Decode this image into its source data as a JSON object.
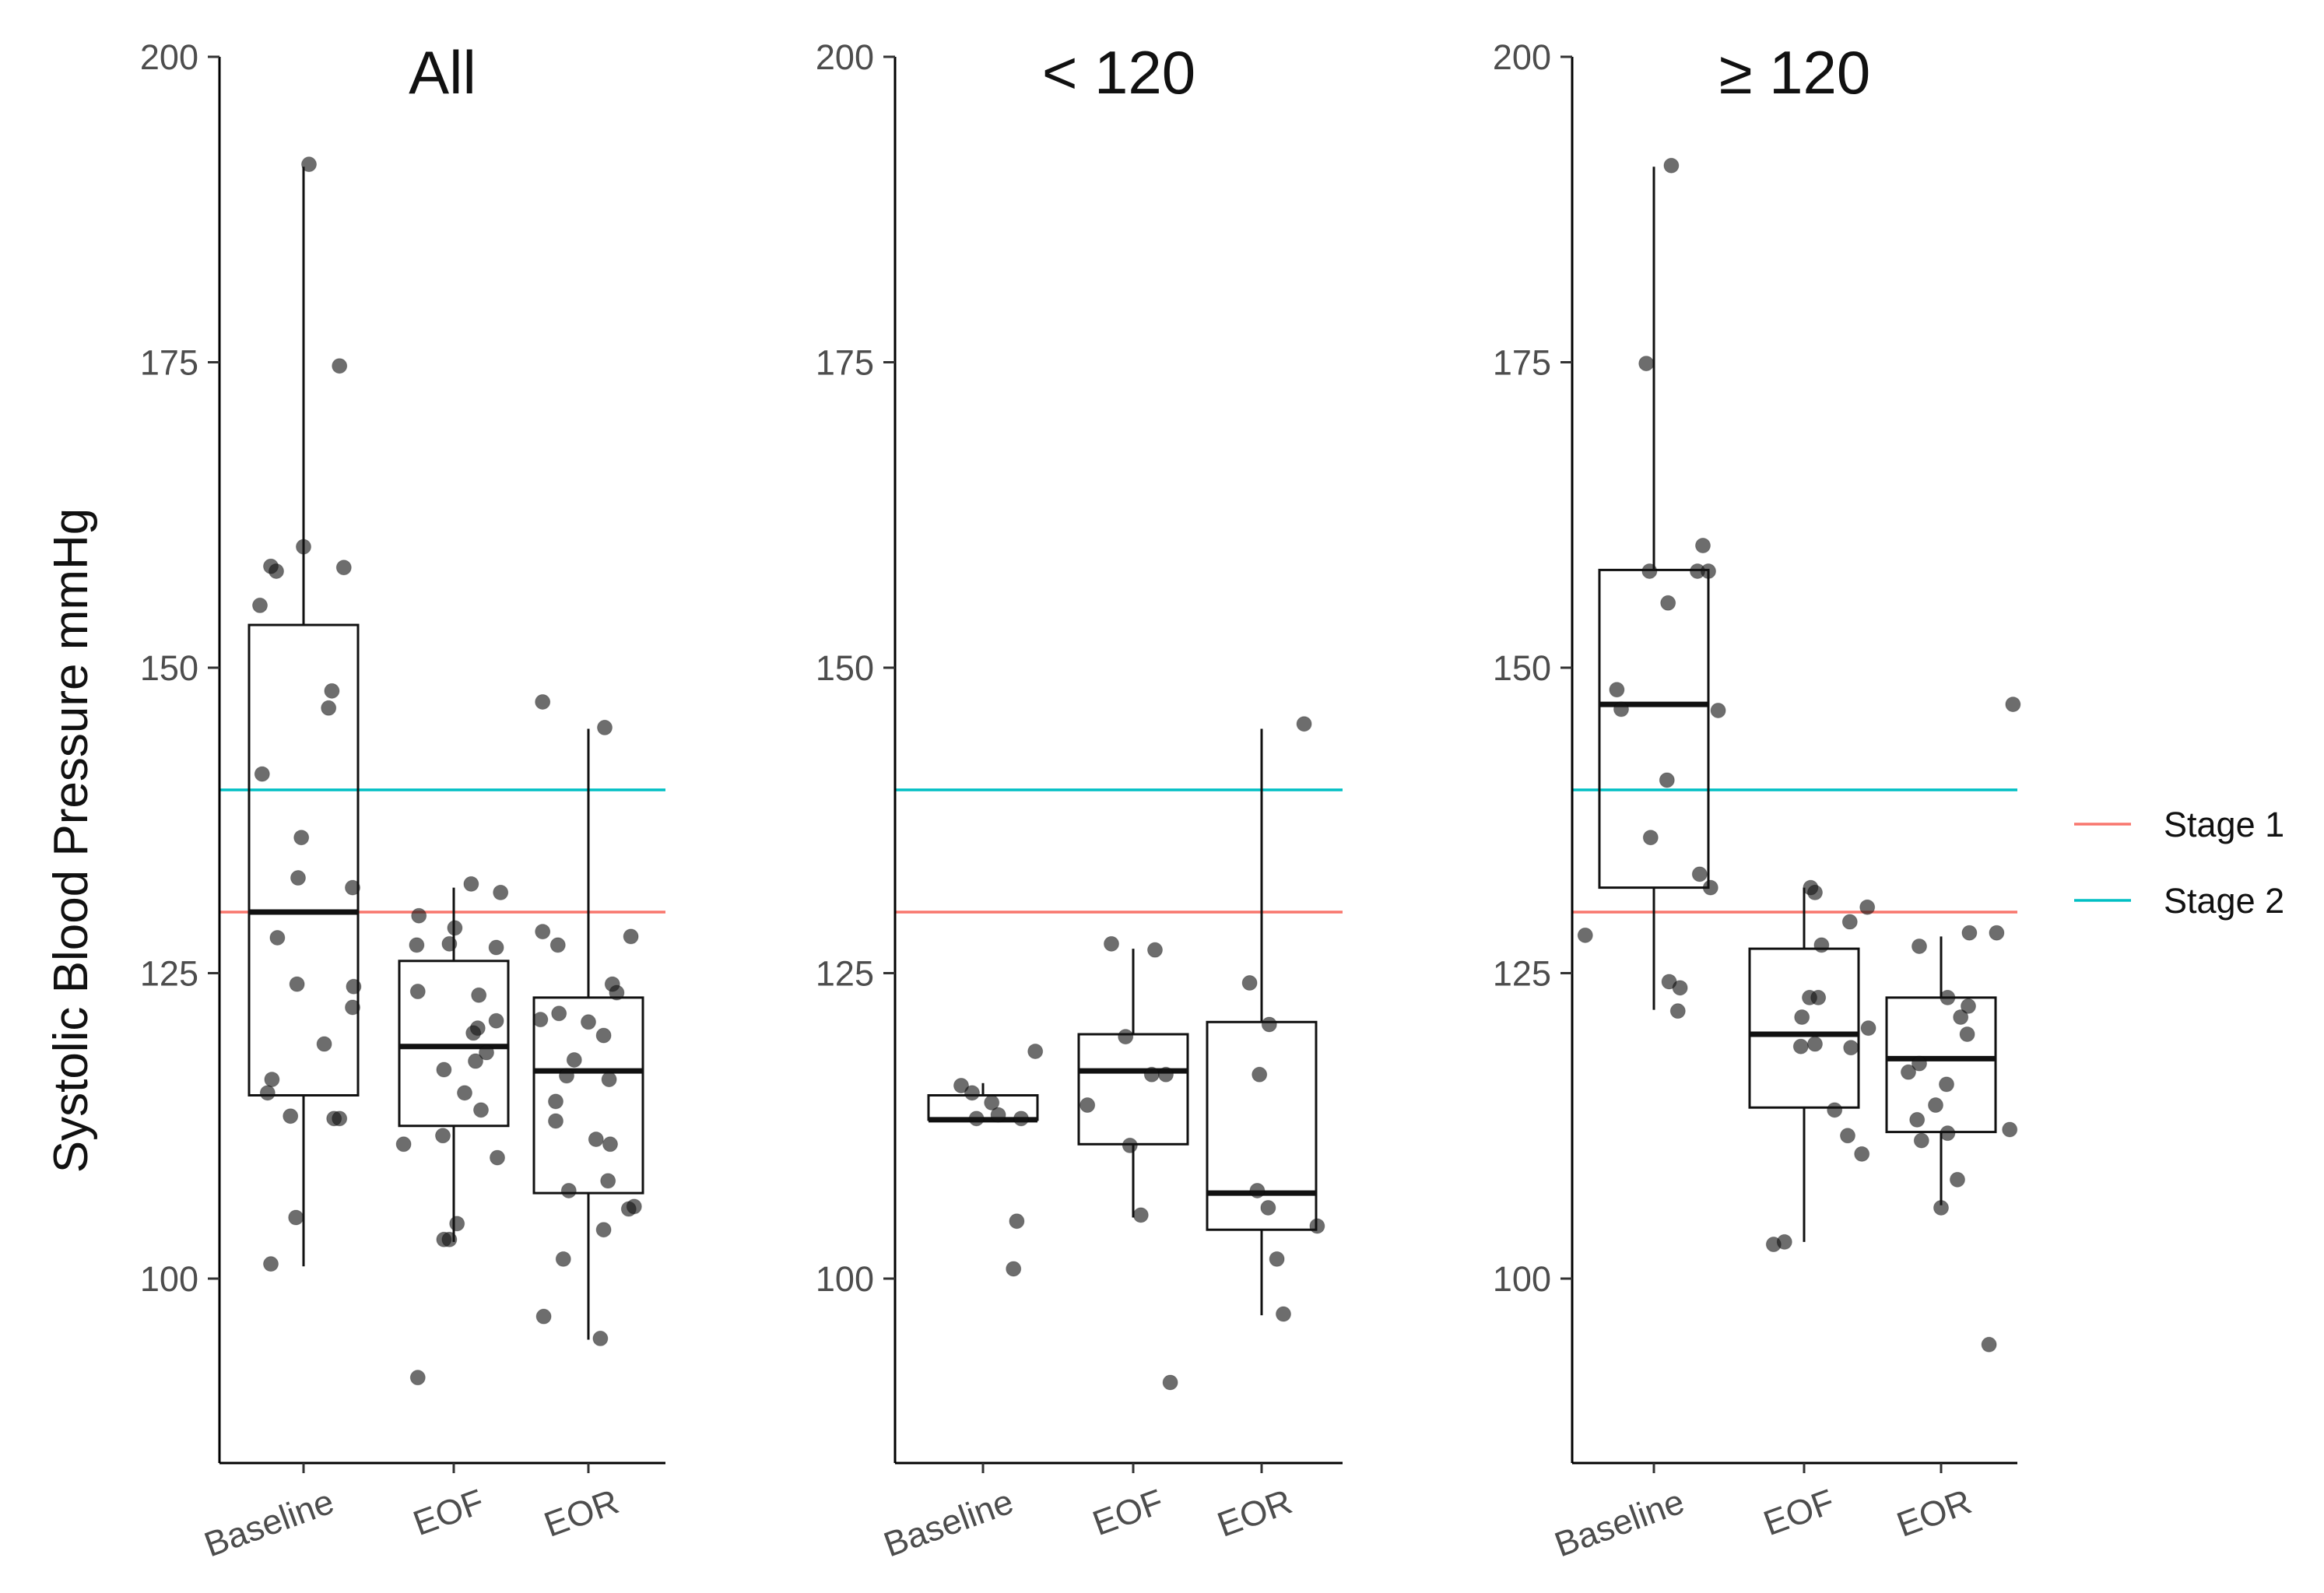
{
  "figure": {
    "ylabel": "Systolic Blood Pressure mmHg",
    "legend": {
      "position": "right",
      "items": [
        {
          "label": "Stage 1",
          "color": "#f8766d",
          "y": 130
        },
        {
          "label": "Stage 2",
          "color": "#00bfc4",
          "y": 140
        }
      ]
    }
  },
  "chart_data": [
    {
      "type": "box",
      "title": "All",
      "categories": [
        "Baseline",
        "EOF",
        "EOR"
      ],
      "ylim": [
        85,
        200
      ],
      "yticks": [
        100,
        125,
        150,
        175,
        200
      ],
      "boxes": [
        {
          "q1": 115,
          "median": 130,
          "q3": 153.5,
          "whisker_low": 101,
          "whisker_high": 191
        },
        {
          "q1": 112.5,
          "median": 119,
          "q3": 126,
          "whisker_low": 103,
          "whisker_high": 132
        },
        {
          "q1": 107,
          "median": 117,
          "q3": 123,
          "whisker_low": 95,
          "whisker_high": 145
        }
      ],
      "points": [
        {
          "x": "Baseline",
          "offset": 0.05,
          "y": 191.2
        },
        {
          "x": "Baseline",
          "offset": 0.33,
          "y": 174.7
        },
        {
          "x": "Baseline",
          "offset": 0.0,
          "y": 159.9
        },
        {
          "x": "Baseline",
          "offset": -0.3,
          "y": 158.3
        },
        {
          "x": "Baseline",
          "offset": -0.25,
          "y": 157.9
        },
        {
          "x": "Baseline",
          "offset": 0.37,
          "y": 158.2
        },
        {
          "x": "Baseline",
          "offset": -0.4,
          "y": 155.1
        },
        {
          "x": "Baseline",
          "offset": 0.26,
          "y": 148.1
        },
        {
          "x": "Baseline",
          "offset": 0.23,
          "y": 146.7
        },
        {
          "x": "Baseline",
          "offset": -0.38,
          "y": 141.3
        },
        {
          "x": "Baseline",
          "offset": -0.02,
          "y": 136.1
        },
        {
          "x": "Baseline",
          "offset": -0.05,
          "y": 132.8
        },
        {
          "x": "Baseline",
          "offset": 0.45,
          "y": 132.0
        },
        {
          "x": "Baseline",
          "offset": -0.24,
          "y": 127.9
        },
        {
          "x": "Baseline",
          "offset": -0.06,
          "y": 124.1
        },
        {
          "x": "Baseline",
          "offset": 0.46,
          "y": 123.9
        },
        {
          "x": "Baseline",
          "offset": 0.45,
          "y": 122.2
        },
        {
          "x": "Baseline",
          "offset": 0.19,
          "y": 119.2
        },
        {
          "x": "Baseline",
          "offset": -0.29,
          "y": 116.3
        },
        {
          "x": "Baseline",
          "offset": -0.33,
          "y": 115.2
        },
        {
          "x": "Baseline",
          "offset": -0.12,
          "y": 113.3
        },
        {
          "x": "Baseline",
          "offset": 0.28,
          "y": 113.1
        },
        {
          "x": "Baseline",
          "offset": 0.33,
          "y": 113.1
        },
        {
          "x": "Baseline",
          "offset": -0.07,
          "y": 105.0
        },
        {
          "x": "Baseline",
          "offset": -0.3,
          "y": 101.2
        },
        {
          "x": "EOF",
          "offset": -0.32,
          "y": 129.7
        },
        {
          "x": "EOF",
          "offset": 0.16,
          "y": 132.3
        },
        {
          "x": "EOF",
          "offset": 0.43,
          "y": 131.6
        },
        {
          "x": "EOF",
          "offset": 0.01,
          "y": 128.7
        },
        {
          "x": "EOF",
          "offset": -0.34,
          "y": 127.3
        },
        {
          "x": "EOF",
          "offset": -0.04,
          "y": 127.4
        },
        {
          "x": "EOF",
          "offset": 0.39,
          "y": 127.1
        },
        {
          "x": "EOF",
          "offset": -0.33,
          "y": 123.5
        },
        {
          "x": "EOF",
          "offset": 0.23,
          "y": 123.2
        },
        {
          "x": "EOF",
          "offset": 0.39,
          "y": 121.1
        },
        {
          "x": "EOF",
          "offset": 0.22,
          "y": 120.5
        },
        {
          "x": "EOF",
          "offset": 0.18,
          "y": 120.1
        },
        {
          "x": "EOF",
          "offset": 0.3,
          "y": 118.5
        },
        {
          "x": "EOF",
          "offset": -0.09,
          "y": 117.1
        },
        {
          "x": "EOF",
          "offset": 0.2,
          "y": 117.8
        },
        {
          "x": "EOF",
          "offset": 0.1,
          "y": 115.2
        },
        {
          "x": "EOF",
          "offset": 0.25,
          "y": 113.8
        },
        {
          "x": "EOF",
          "offset": -0.1,
          "y": 111.7
        },
        {
          "x": "EOF",
          "offset": -0.46,
          "y": 111.0
        },
        {
          "x": "EOF",
          "offset": 0.4,
          "y": 109.9
        },
        {
          "x": "EOF",
          "offset": 0.03,
          "y": 104.5
        },
        {
          "x": "EOF",
          "offset": -0.09,
          "y": 103.2
        },
        {
          "x": "EOF",
          "offset": -0.04,
          "y": 103.2
        },
        {
          "x": "EOF",
          "offset": -0.33,
          "y": 91.9
        },
        {
          "x": "EOR",
          "offset": -0.42,
          "y": 147.2
        },
        {
          "x": "EOR",
          "offset": 0.15,
          "y": 145.1
        },
        {
          "x": "EOR",
          "offset": -0.42,
          "y": 128.4
        },
        {
          "x": "EOR",
          "offset": -0.28,
          "y": 127.3
        },
        {
          "x": "EOR",
          "offset": 0.39,
          "y": 128.0
        },
        {
          "x": "EOR",
          "offset": 0.22,
          "y": 124.1
        },
        {
          "x": "EOR",
          "offset": 0.26,
          "y": 123.4
        },
        {
          "x": "EOR",
          "offset": -0.44,
          "y": 121.2
        },
        {
          "x": "EOR",
          "offset": -0.27,
          "y": 121.7
        },
        {
          "x": "EOR",
          "offset": 0.0,
          "y": 121.0
        },
        {
          "x": "EOR",
          "offset": 0.14,
          "y": 119.9
        },
        {
          "x": "EOR",
          "offset": -0.13,
          "y": 117.9
        },
        {
          "x": "EOR",
          "offset": -0.2,
          "y": 116.6
        },
        {
          "x": "EOR",
          "offset": 0.19,
          "y": 116.3
        },
        {
          "x": "EOR",
          "offset": -0.3,
          "y": 114.5
        },
        {
          "x": "EOR",
          "offset": -0.3,
          "y": 112.9
        },
        {
          "x": "EOR",
          "offset": 0.07,
          "y": 111.4
        },
        {
          "x": "EOR",
          "offset": 0.2,
          "y": 111.0
        },
        {
          "x": "EOR",
          "offset": 0.18,
          "y": 108.0
        },
        {
          "x": "EOR",
          "offset": -0.18,
          "y": 107.2
        },
        {
          "x": "EOR",
          "offset": 0.37,
          "y": 105.7
        },
        {
          "x": "EOR",
          "offset": 0.42,
          "y": 105.9
        },
        {
          "x": "EOR",
          "offset": 0.14,
          "y": 104.0
        },
        {
          "x": "EOR",
          "offset": -0.23,
          "y": 101.6
        },
        {
          "x": "EOR",
          "offset": -0.41,
          "y": 96.9
        },
        {
          "x": "EOR",
          "offset": 0.11,
          "y": 95.1
        }
      ]
    },
    {
      "type": "box",
      "title": "< 120",
      "categories": [
        "Baseline",
        "EOF",
        "EOR"
      ],
      "ylim": [
        85,
        200
      ],
      "yticks": [
        100,
        125,
        150,
        175,
        200
      ],
      "boxes": [
        {
          "q1": 113,
          "median": 113,
          "q3": 115,
          "whisker_low": 113,
          "whisker_high": 116
        },
        {
          "q1": 111,
          "median": 117,
          "q3": 120,
          "whisker_low": 105,
          "whisker_high": 127
        },
        {
          "q1": 104,
          "median": 107,
          "q3": 121,
          "whisker_low": 97,
          "whisker_high": 145
        }
      ],
      "points": [
        {
          "x": "Baseline",
          "offset": 0.48,
          "y": 118.6
        },
        {
          "x": "Baseline",
          "offset": -0.2,
          "y": 115.8
        },
        {
          "x": "Baseline",
          "offset": -0.1,
          "y": 115.2
        },
        {
          "x": "Baseline",
          "offset": 0.08,
          "y": 114.4
        },
        {
          "x": "Baseline",
          "offset": 0.14,
          "y": 113.4
        },
        {
          "x": "Baseline",
          "offset": 0.35,
          "y": 113.1
        },
        {
          "x": "Baseline",
          "offset": -0.06,
          "y": 113.1
        },
        {
          "x": "Baseline",
          "offset": 0.31,
          "y": 104.7
        },
        {
          "x": "Baseline",
          "offset": 0.28,
          "y": 100.8
        },
        {
          "x": "EOF",
          "offset": -0.2,
          "y": 127.4
        },
        {
          "x": "EOF",
          "offset": 0.2,
          "y": 126.9
        },
        {
          "x": "EOF",
          "offset": -0.07,
          "y": 119.8
        },
        {
          "x": "EOF",
          "offset": 0.17,
          "y": 116.7
        },
        {
          "x": "EOF",
          "offset": 0.3,
          "y": 116.7
        },
        {
          "x": "EOF",
          "offset": -0.42,
          "y": 114.2
        },
        {
          "x": "EOF",
          "offset": -0.03,
          "y": 110.9
        },
        {
          "x": "EOF",
          "offset": 0.07,
          "y": 105.2
        },
        {
          "x": "EOF",
          "offset": 0.34,
          "y": 91.5
        },
        {
          "x": "EOR",
          "offset": 0.39,
          "y": 145.4
        },
        {
          "x": "EOR",
          "offset": -0.11,
          "y": 124.2
        },
        {
          "x": "EOR",
          "offset": 0.07,
          "y": 120.8
        },
        {
          "x": "EOR",
          "offset": -0.02,
          "y": 116.7
        },
        {
          "x": "EOR",
          "offset": -0.04,
          "y": 107.2
        },
        {
          "x": "EOR",
          "offset": 0.06,
          "y": 105.8
        },
        {
          "x": "EOR",
          "offset": 0.51,
          "y": 104.3
        },
        {
          "x": "EOR",
          "offset": 0.14,
          "y": 101.6
        },
        {
          "x": "EOR",
          "offset": 0.2,
          "y": 97.1
        }
      ]
    },
    {
      "type": "box",
      "title": "≥ 120",
      "categories": [
        "Baseline",
        "EOF",
        "EOR"
      ],
      "ylim": [
        85,
        200
      ],
      "yticks": [
        100,
        125,
        150,
        175,
        200
      ],
      "boxes": [
        {
          "q1": 132,
          "median": 147,
          "q3": 158,
          "whisker_low": 122,
          "whisker_high": 191
        },
        {
          "q1": 114,
          "median": 120,
          "q3": 127,
          "whisker_low": 103,
          "whisker_high": 132
        },
        {
          "q1": 112,
          "median": 118,
          "q3": 123,
          "whisker_low": 106,
          "whisker_high": 128
        }
      ],
      "points": [
        {
          "x": "Baseline",
          "offset": 0.16,
          "y": 191.1
        },
        {
          "x": "Baseline",
          "offset": -0.07,
          "y": 174.9
        },
        {
          "x": "Baseline",
          "offset": 0.45,
          "y": 160.0
        },
        {
          "x": "Baseline",
          "offset": -0.04,
          "y": 157.9
        },
        {
          "x": "Baseline",
          "offset": 0.4,
          "y": 157.9
        },
        {
          "x": "Baseline",
          "offset": 0.5,
          "y": 157.9
        },
        {
          "x": "Baseline",
          "offset": 0.13,
          "y": 155.3
        },
        {
          "x": "Baseline",
          "offset": -0.34,
          "y": 148.2
        },
        {
          "x": "Baseline",
          "offset": -0.3,
          "y": 146.6
        },
        {
          "x": "Baseline",
          "offset": 0.59,
          "y": 146.5
        },
        {
          "x": "Baseline",
          "offset": 0.12,
          "y": 140.8
        },
        {
          "x": "Baseline",
          "offset": -0.03,
          "y": 136.1
        },
        {
          "x": "Baseline",
          "offset": 0.42,
          "y": 133.1
        },
        {
          "x": "Baseline",
          "offset": 0.52,
          "y": 132.0
        },
        {
          "x": "Baseline",
          "offset": -0.63,
          "y": 128.1
        },
        {
          "x": "Baseline",
          "offset": 0.14,
          "y": 124.3
        },
        {
          "x": "Baseline",
          "offset": 0.24,
          "y": 123.8
        },
        {
          "x": "Baseline",
          "offset": 0.22,
          "y": 121.9
        },
        {
          "x": "EOF",
          "offset": 0.06,
          "y": 132.0
        },
        {
          "x": "EOF",
          "offset": 0.1,
          "y": 131.6
        },
        {
          "x": "EOF",
          "offset": 0.58,
          "y": 130.4
        },
        {
          "x": "EOF",
          "offset": 0.42,
          "y": 129.2
        },
        {
          "x": "EOF",
          "offset": 0.16,
          "y": 127.3
        },
        {
          "x": "EOF",
          "offset": 0.05,
          "y": 123.0
        },
        {
          "x": "EOF",
          "offset": 0.13,
          "y": 123.0
        },
        {
          "x": "EOF",
          "offset": -0.02,
          "y": 121.4
        },
        {
          "x": "EOF",
          "offset": 0.59,
          "y": 120.5
        },
        {
          "x": "EOF",
          "offset": -0.03,
          "y": 119.0
        },
        {
          "x": "EOF",
          "offset": 0.1,
          "y": 119.2
        },
        {
          "x": "EOF",
          "offset": 0.43,
          "y": 118.9
        },
        {
          "x": "EOF",
          "offset": 0.28,
          "y": 113.8
        },
        {
          "x": "EOF",
          "offset": 0.4,
          "y": 111.7
        },
        {
          "x": "EOF",
          "offset": 0.53,
          "y": 110.2
        },
        {
          "x": "EOF",
          "offset": -0.28,
          "y": 102.8
        },
        {
          "x": "EOF",
          "offset": -0.18,
          "y": 103.0
        },
        {
          "x": "EOR",
          "offset": -0.2,
          "y": 127.2
        },
        {
          "x": "EOR",
          "offset": 0.26,
          "y": 128.3
        },
        {
          "x": "EOR",
          "offset": 0.51,
          "y": 128.3
        },
        {
          "x": "EOR",
          "offset": 0.06,
          "y": 123.0
        },
        {
          "x": "EOR",
          "offset": 0.25,
          "y": 122.3
        },
        {
          "x": "EOR",
          "offset": 0.18,
          "y": 121.4
        },
        {
          "x": "EOR",
          "offset": 0.24,
          "y": 120.0
        },
        {
          "x": "EOR",
          "offset": -0.2,
          "y": 117.6
        },
        {
          "x": "EOR",
          "offset": -0.3,
          "y": 116.9
        },
        {
          "x": "EOR",
          "offset": 0.05,
          "y": 115.9
        },
        {
          "x": "EOR",
          "offset": -0.05,
          "y": 114.2
        },
        {
          "x": "EOR",
          "offset": -0.22,
          "y": 113.0
        },
        {
          "x": "EOR",
          "offset": 0.63,
          "y": 112.2
        },
        {
          "x": "EOR",
          "offset": 0.06,
          "y": 111.9
        },
        {
          "x": "EOR",
          "offset": -0.18,
          "y": 111.3
        },
        {
          "x": "EOR",
          "offset": 0.15,
          "y": 108.1
        },
        {
          "x": "EOR",
          "offset": 0.0,
          "y": 105.8
        },
        {
          "x": "EOR",
          "offset": 0.66,
          "y": 147.0
        },
        {
          "x": "EOR",
          "offset": 0.44,
          "y": 94.6
        }
      ]
    }
  ]
}
